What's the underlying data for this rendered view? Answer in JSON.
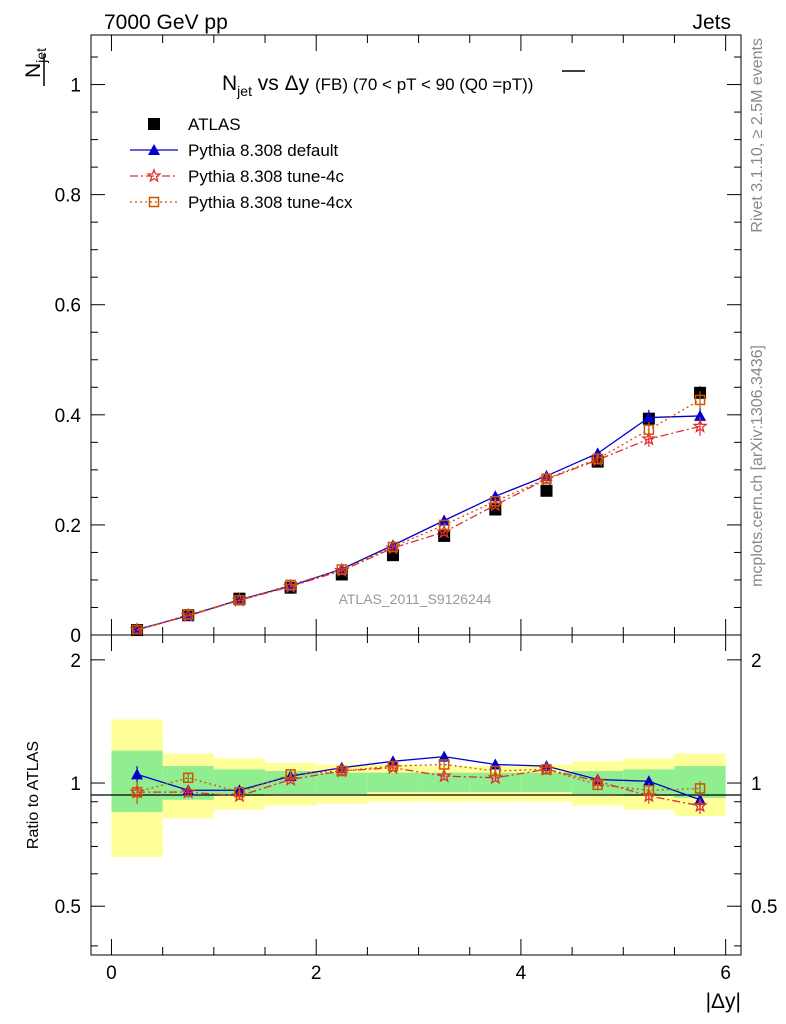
{
  "header": {
    "left": "7000 GeV pp",
    "right": "Jets"
  },
  "side_labels": {
    "rivet": "Rivet 3.1.10, ≥ 2.5M events",
    "mcplots": "mcplots.cern.ch [arXiv:1306.3436]"
  },
  "chart_data": [
    {
      "type": "scatter",
      "title_parts": {
        "a": "N",
        "a_sub": "jet",
        "b": " vs Δy ",
        "c": "(FB) (70 < pT <  90 (Q0 =",
        "c_bar": "pT",
        "d": "))"
      },
      "ylabel_parts": {
        "main": "N",
        "sub": "jet",
        "overline": true
      },
      "watermark": "ATLAS_2011_S9126244",
      "xlim": [
        -0.2,
        6.15
      ],
      "ylim": [
        0,
        1.09
      ],
      "yticks": [
        0,
        0.2,
        0.4,
        0.6,
        0.8,
        1
      ],
      "ytick_labels": [
        "0",
        "0.2",
        "0.4",
        "0.6",
        "0.8",
        "1"
      ],
      "x": [
        0.25,
        0.75,
        1.25,
        1.75,
        2.25,
        2.75,
        3.25,
        3.75,
        4.25,
        4.75,
        5.25,
        5.75
      ],
      "legend_position": "top-left",
      "series": [
        {
          "name": "ATLAS",
          "color": "#000000",
          "marker": "square",
          "line": "none",
          "values": [
            0.009,
            0.036,
            0.066,
            0.086,
            0.11,
            0.145,
            0.18,
            0.228,
            0.262,
            0.315,
            0.393,
            0.44
          ],
          "err": [
            0.002,
            0.003,
            0.004,
            0.004,
            0.005,
            0.005,
            0.006,
            0.007,
            0.008,
            0.01,
            0.012,
            0.012
          ]
        },
        {
          "name": "Pythia 8.308 default",
          "color": "#0000cc",
          "marker": "triangle",
          "line": "solid",
          "values": [
            0.01,
            0.035,
            0.064,
            0.089,
            0.12,
            0.163,
            0.208,
            0.252,
            0.289,
            0.33,
            0.395,
            0.398
          ],
          "err": [
            0.001,
            0.001,
            0.002,
            0.002,
            0.003,
            0.003,
            0.004,
            0.005,
            0.006,
            0.008,
            0.014,
            0.015
          ]
        },
        {
          "name": "Pythia 8.308 tune-4c",
          "color": "#e03030",
          "marker": "star",
          "line": "dashdot",
          "values": [
            0.009,
            0.035,
            0.063,
            0.088,
            0.117,
            0.158,
            0.187,
            0.236,
            0.283,
            0.318,
            0.356,
            0.379
          ],
          "err": [
            0.001,
            0.001,
            0.002,
            0.002,
            0.003,
            0.003,
            0.004,
            0.005,
            0.006,
            0.009,
            0.014,
            0.017
          ]
        },
        {
          "name": "Pythia 8.308 tune-4cx",
          "color": "#cc5500",
          "marker": "open-square",
          "line": "dotted",
          "values": [
            0.009,
            0.037,
            0.063,
            0.091,
            0.119,
            0.16,
            0.2,
            0.243,
            0.284,
            0.32,
            0.373,
            0.427
          ],
          "err": [
            0.001,
            0.001,
            0.002,
            0.002,
            0.003,
            0.003,
            0.004,
            0.005,
            0.006,
            0.009,
            0.014,
            0.016
          ]
        }
      ]
    },
    {
      "type": "scatter",
      "ylabel": "Ratio to ATLAS",
      "xlabel": "|Δy|",
      "xlim": [
        -0.2,
        6.15
      ],
      "ylim_log": [
        0.38,
        2.3
      ],
      "yticks": [
        0.5,
        1,
        2
      ],
      "ytick_labels": [
        "0.5",
        "1",
        "2"
      ],
      "xticks": [
        0,
        2,
        4,
        6
      ],
      "xtick_labels": [
        "0",
        "2",
        "4",
        "6"
      ],
      "bands": {
        "bin_edges": [
          0,
          0.5,
          1,
          1.5,
          2,
          2.5,
          3,
          3.5,
          4,
          4.5,
          5,
          5.5,
          6
        ],
        "green_lo": [
          0.85,
          0.91,
          0.93,
          0.94,
          0.94,
          0.95,
          0.95,
          0.95,
          0.95,
          0.94,
          0.93,
          0.92
        ],
        "green_hi": [
          1.2,
          1.1,
          1.08,
          1.07,
          1.06,
          1.06,
          1.06,
          1.06,
          1.06,
          1.07,
          1.08,
          1.1
        ],
        "yellow_lo": [
          0.66,
          0.82,
          0.86,
          0.88,
          0.89,
          0.9,
          0.9,
          0.9,
          0.9,
          0.88,
          0.86,
          0.83
        ],
        "yellow_hi": [
          1.43,
          1.18,
          1.15,
          1.12,
          1.11,
          1.11,
          1.1,
          1.1,
          1.11,
          1.13,
          1.15,
          1.18
        ],
        "green_color": "#90ee90",
        "yellow_color": "#ffff99"
      },
      "series": [
        {
          "name": "Pythia 8.308 default",
          "color": "#0000cc",
          "marker": "triangle",
          "line": "solid",
          "values": [
            1.05,
            0.96,
            0.96,
            1.04,
            1.09,
            1.13,
            1.16,
            1.11,
            1.1,
            1.02,
            1.01,
            0.91
          ],
          "err": [
            0.05,
            0.02,
            0.02,
            0.02,
            0.02,
            0.02,
            0.02,
            0.02,
            0.02,
            0.02,
            0.03,
            0.04
          ]
        },
        {
          "name": "Pythia 8.308 tune-4c",
          "color": "#e03030",
          "marker": "star",
          "line": "dashdot",
          "values": [
            0.95,
            0.95,
            0.93,
            1.02,
            1.07,
            1.09,
            1.04,
            1.03,
            1.08,
            1.01,
            0.93,
            0.88
          ],
          "err": [
            0.06,
            0.03,
            0.02,
            0.02,
            0.02,
            0.02,
            0.02,
            0.02,
            0.02,
            0.03,
            0.04,
            0.04
          ]
        },
        {
          "name": "Pythia 8.308 tune-4cx",
          "color": "#cc5500",
          "marker": "open-square",
          "line": "dotted",
          "values": [
            0.95,
            1.03,
            0.95,
            1.05,
            1.07,
            1.1,
            1.11,
            1.07,
            1.08,
            0.99,
            0.96,
            0.97
          ],
          "err": [
            0.05,
            0.03,
            0.02,
            0.02,
            0.02,
            0.02,
            0.02,
            0.02,
            0.02,
            0.03,
            0.04,
            0.04
          ]
        }
      ]
    }
  ]
}
